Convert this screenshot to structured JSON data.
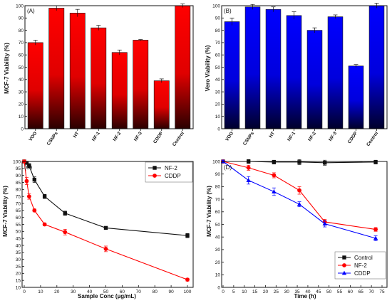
{
  "chart_data": [
    {
      "type": "bar",
      "panel_label": "(A)",
      "ylabel": "MCF-7 Viability (%)",
      "categories": [
        "VOO",
        "CSNPs",
        "HT",
        "NF-1",
        "NF-2",
        "NF-3",
        "CDDP",
        "Control"
      ],
      "values": [
        70,
        98,
        94,
        82,
        62,
        72,
        39,
        100
      ],
      "errors": [
        2,
        2,
        3,
        2,
        2,
        0.5,
        1.5,
        1.5
      ],
      "ylim": [
        0,
        100
      ],
      "yticks": [
        "0",
        "10",
        "20",
        "30",
        "40",
        "50",
        "60",
        "70",
        "80",
        "90",
        "100"
      ],
      "color": "#ff0000"
    },
    {
      "type": "bar",
      "panel_label": "(B)",
      "ylabel": "Vero Viability (%)",
      "categories": [
        "VOO",
        "CSNPs",
        "HT",
        "NF-1",
        "NF-2",
        "NF-3",
        "CDDP",
        "Control"
      ],
      "values": [
        87,
        99,
        97,
        92,
        80,
        91,
        51,
        100
      ],
      "errors": [
        3,
        2,
        2,
        3,
        2,
        1.5,
        1.2,
        2
      ],
      "ylim": [
        0,
        100
      ],
      "yticks": [
        "0",
        "10",
        "20",
        "30",
        "40",
        "50",
        "60",
        "70",
        "80",
        "90",
        "100"
      ],
      "color": "#0000ff"
    },
    {
      "type": "line",
      "panel_label": "(C)",
      "xlabel": "Sample Conc (µg/mL)",
      "ylabel": "MCF-7 Viability (%)",
      "xlim": [
        0,
        100
      ],
      "ylim": [
        10,
        100
      ],
      "xticks": [
        "0",
        "10",
        "20",
        "30",
        "40",
        "50",
        "60",
        "70",
        "80",
        "90",
        "100"
      ],
      "yticks": [
        "10",
        "15",
        "20",
        "25",
        "30",
        "35",
        "40",
        "45",
        "50",
        "55",
        "60",
        "65",
        "70",
        "75",
        "80",
        "85",
        "90",
        "95",
        "100"
      ],
      "legend": "top-right",
      "series": [
        {
          "name": "NF-2",
          "color": "#111111",
          "marker": "square",
          "x": [
            0,
            1.5,
            3,
            6.25,
            12.5,
            25,
            50,
            100
          ],
          "y": [
            100,
            99,
            97,
            87,
            75,
            63,
            52.5,
            47
          ],
          "err": [
            1,
            1,
            1.5,
            2,
            1.5,
            1.5,
            1,
            1.5
          ]
        },
        {
          "name": "CDDP",
          "color": "#ff0000",
          "marker": "circle",
          "x": [
            0,
            1.5,
            3,
            6.25,
            12.5,
            25,
            50,
            100
          ],
          "y": [
            100,
            86,
            75,
            65,
            55,
            49.5,
            37.5,
            15.5
          ],
          "err": [
            1,
            2.5,
            2,
            1,
            1,
            2,
            2,
            1
          ]
        }
      ]
    },
    {
      "type": "line",
      "panel_label": "(D)",
      "xlabel": "Time (h)",
      "ylabel": "MCF-7 Viability (%)",
      "xlim": [
        0,
        75
      ],
      "ylim": [
        0,
        100
      ],
      "xticks": [
        "0",
        "5",
        "10",
        "15",
        "20",
        "25",
        "30",
        "35",
        "40",
        "45",
        "50",
        "55",
        "60",
        "65",
        "70",
        "75"
      ],
      "yticks": [
        "0",
        "10",
        "20",
        "30",
        "40",
        "50",
        "60",
        "70",
        "80",
        "90",
        "100"
      ],
      "legend": "bottom-right",
      "series": [
        {
          "name": "Control",
          "color": "#111111",
          "marker": "square",
          "x": [
            0,
            12,
            24,
            36,
            48,
            72
          ],
          "y": [
            100,
            100,
            99.5,
            99.5,
            99,
            99.5
          ],
          "err": [
            1,
            1.5,
            1.5,
            2,
            2,
            1.5
          ]
        },
        {
          "name": "NF-2",
          "color": "#ff0000",
          "marker": "circle",
          "x": [
            0,
            12,
            24,
            36,
            48,
            72
          ],
          "y": [
            100,
            95,
            89,
            77,
            52,
            46
          ],
          "err": [
            1,
            2,
            2,
            3,
            2,
            1.5
          ]
        },
        {
          "name": "CDDP",
          "color": "#0000ff",
          "marker": "triangle",
          "x": [
            0,
            12,
            24,
            36,
            48,
            72
          ],
          "y": [
            100,
            85,
            76,
            66,
            50.5,
            39
          ],
          "err": [
            1,
            3,
            3,
            2,
            2.5,
            2
          ]
        }
      ]
    }
  ]
}
